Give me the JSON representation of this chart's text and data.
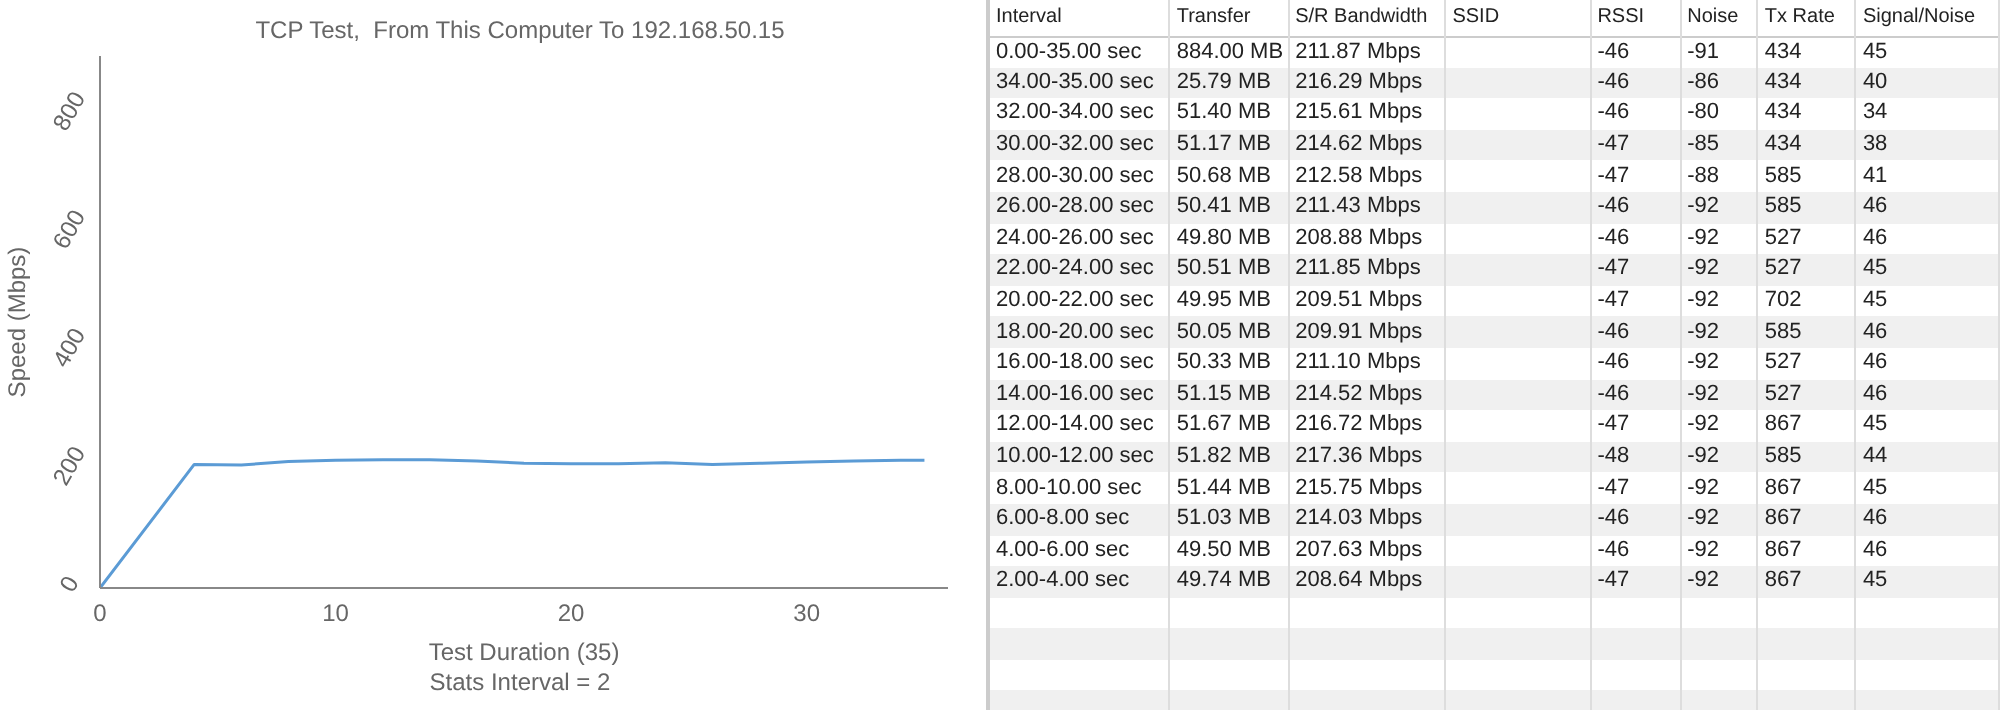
{
  "chart_data": [
    {
      "type": "line",
      "title": "TCP Test,  From This Computer To 192.168.50.15",
      "xlabel": "Test Duration (35)",
      "ylabel": "Speed (Mbps)",
      "annotations": [
        "Stats Interval = 2"
      ],
      "x": [
        0,
        4,
        6,
        8,
        10,
        12,
        14,
        16,
        18,
        20,
        22,
        24,
        26,
        28,
        30,
        32,
        34,
        35
      ],
      "series": [
        {
          "color": "#5b9bd5",
          "values": [
            0,
            209,
            208,
            214,
            216,
            217,
            217,
            215,
            211,
            210,
            210,
            212,
            209,
            211,
            213,
            215,
            216,
            216
          ]
        }
      ],
      "xlim": [
        0,
        36
      ],
      "xticks": [
        0,
        10,
        20,
        30
      ],
      "ylim": [
        0,
        900
      ],
      "yticks": [
        0,
        200,
        400,
        600,
        800
      ],
      "marker": "none",
      "line_style": "solid"
    },
    {
      "type": "other",
      "categories": [
        "Interval",
        "Transfer",
        "S/R Bandwidth",
        "SSID",
        "RSSI",
        "Noise",
        "Tx Rate",
        "Signal/Noise"
      ],
      "cell_labels": [
        [
          "0.00-35.00 sec",
          "884.00 MB",
          "211.87 Mbps",
          null,
          "-46",
          "-91",
          "434",
          "45"
        ],
        [
          "34.00-35.00 sec",
          "25.79 MB",
          "216.29 Mbps",
          null,
          "-46",
          "-86",
          "434",
          "40"
        ],
        [
          "32.00-34.00 sec",
          "51.40 MB",
          "215.61 Mbps",
          null,
          "-46",
          "-80",
          "434",
          "34"
        ],
        [
          "30.00-32.00 sec",
          "51.17 MB",
          "214.62 Mbps",
          null,
          "-47",
          "-85",
          "434",
          "38"
        ],
        [
          "28.00-30.00 sec",
          "50.68 MB",
          "212.58 Mbps",
          null,
          "-47",
          "-88",
          "585",
          "41"
        ],
        [
          "26.00-28.00 sec",
          "50.41 MB",
          "211.43 Mbps",
          null,
          "-46",
          "-92",
          "585",
          "46"
        ],
        [
          "24.00-26.00 sec",
          "49.80 MB",
          "208.88 Mbps",
          null,
          "-46",
          "-92",
          "527",
          "46"
        ],
        [
          "22.00-24.00 sec",
          "50.51 MB",
          "211.85 Mbps",
          null,
          "-47",
          "-92",
          "527",
          "45"
        ],
        [
          "20.00-22.00 sec",
          "49.95 MB",
          "209.51 Mbps",
          null,
          "-47",
          "-92",
          "702",
          "45"
        ],
        [
          "18.00-20.00 sec",
          "50.05 MB",
          "209.91 Mbps",
          null,
          "-46",
          "-92",
          "585",
          "46"
        ],
        [
          "16.00-18.00 sec",
          "50.33 MB",
          "211.10 Mbps",
          null,
          "-46",
          "-92",
          "527",
          "46"
        ],
        [
          "14.00-16.00 sec",
          "51.15 MB",
          "214.52 Mbps",
          null,
          "-46",
          "-92",
          "527",
          "46"
        ],
        [
          "12.00-14.00 sec",
          "51.67 MB",
          "216.72 Mbps",
          null,
          "-47",
          "-92",
          "867",
          "45"
        ],
        [
          "10.00-12.00 sec",
          "51.82 MB",
          "217.36 Mbps",
          null,
          "-48",
          "-92",
          "585",
          "44"
        ],
        [
          "8.00-10.00 sec",
          "51.44 MB",
          "215.75 Mbps",
          null,
          "-47",
          "-92",
          "867",
          "45"
        ],
        [
          "6.00-8.00 sec",
          "51.03 MB",
          "214.03 Mbps",
          null,
          "-46",
          "-92",
          "867",
          "46"
        ],
        [
          "4.00-6.00 sec",
          "49.50 MB",
          "207.63 Mbps",
          null,
          "-46",
          "-92",
          "867",
          "46"
        ],
        [
          "2.00-4.00 sec",
          "49.74 MB",
          "208.64 Mbps",
          null,
          "-47",
          "-92",
          "867",
          "45"
        ],
        [
          null,
          null,
          null,
          null,
          null,
          null,
          null,
          null
        ],
        [
          null,
          null,
          null,
          null,
          null,
          null,
          null,
          null
        ],
        [
          null,
          null,
          null,
          null,
          null,
          null,
          null,
          null
        ],
        [
          null,
          null,
          null,
          null,
          null,
          null,
          null,
          null
        ]
      ]
    }
  ]
}
